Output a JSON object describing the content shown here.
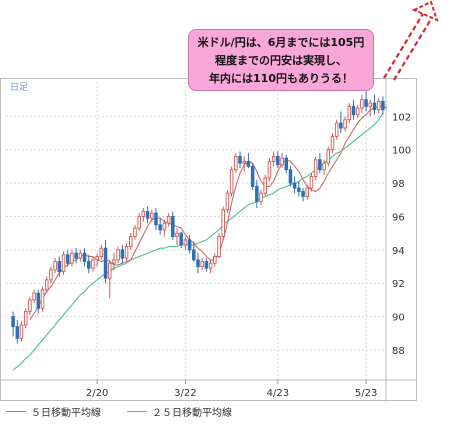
{
  "chart_data": {
    "type": "candlestick",
    "period_label": "日足",
    "y_ticks": [
      88,
      90,
      92,
      94,
      96,
      98,
      100,
      102
    ],
    "ylim": [
      86.2,
      104.3
    ],
    "x_tick_labels": [
      "2/20",
      "3/22",
      "4/23",
      "5/23"
    ],
    "x_tick_index": [
      20,
      41,
      63,
      84
    ],
    "candles": [
      [
        90.0,
        90.3,
        88.8,
        89.4
      ],
      [
        89.4,
        89.8,
        88.4,
        88.7
      ],
      [
        88.7,
        89.7,
        88.5,
        89.5
      ],
      [
        89.5,
        90.5,
        89.3,
        90.3
      ],
      [
        90.3,
        91.2,
        90.1,
        91.0
      ],
      [
        91.0,
        91.6,
        90.8,
        91.4
      ],
      [
        91.4,
        91.6,
        90.2,
        90.5
      ],
      [
        90.5,
        91.8,
        90.3,
        91.6
      ],
      [
        91.6,
        92.4,
        91.4,
        92.2
      ],
      [
        92.2,
        93.0,
        92.0,
        92.8
      ],
      [
        92.8,
        93.5,
        92.6,
        93.3
      ],
      [
        93.3,
        93.6,
        92.4,
        92.7
      ],
      [
        92.7,
        93.9,
        92.5,
        93.7
      ],
      [
        93.7,
        94.0,
        93.0,
        93.2
      ],
      [
        93.2,
        94.0,
        93.0,
        93.8
      ],
      [
        93.8,
        94.1,
        93.2,
        93.5
      ],
      [
        93.5,
        94.0,
        93.3,
        93.8
      ],
      [
        93.8,
        94.1,
        93.0,
        93.3
      ],
      [
        93.3,
        93.7,
        92.6,
        92.9
      ],
      [
        92.9,
        93.6,
        92.7,
        93.4
      ],
      [
        93.4,
        93.8,
        93.0,
        93.6
      ],
      [
        93.6,
        94.3,
        93.4,
        94.1
      ],
      [
        94.1,
        94.6,
        92.0,
        92.3
      ],
      [
        92.3,
        93.4,
        91.1,
        93.2
      ],
      [
        93.2,
        93.8,
        92.8,
        93.4
      ],
      [
        93.4,
        94.2,
        93.2,
        94.0
      ],
      [
        94.0,
        94.3,
        93.2,
        93.5
      ],
      [
        93.5,
        94.4,
        93.3,
        94.2
      ],
      [
        94.2,
        95.0,
        94.0,
        94.8
      ],
      [
        94.8,
        95.5,
        94.6,
        95.3
      ],
      [
        95.3,
        96.2,
        95.1,
        96.0
      ],
      [
        96.0,
        96.5,
        95.7,
        96.3
      ],
      [
        96.3,
        96.6,
        95.6,
        95.9
      ],
      [
        95.9,
        96.4,
        95.7,
        96.2
      ],
      [
        96.2,
        96.5,
        95.2,
        95.5
      ],
      [
        95.5,
        95.9,
        94.9,
        95.2
      ],
      [
        95.2,
        95.8,
        94.8,
        95.6
      ],
      [
        95.6,
        96.2,
        95.4,
        96.0
      ],
      [
        96.0,
        96.3,
        94.6,
        94.8
      ],
      [
        94.8,
        95.3,
        94.3,
        95.0
      ],
      [
        95.0,
        95.1,
        94.1,
        94.3
      ],
      [
        94.3,
        94.8,
        94.0,
        94.6
      ],
      [
        94.6,
        94.9,
        93.8,
        94.0
      ],
      [
        94.0,
        94.5,
        93.3,
        93.4
      ],
      [
        93.4,
        93.8,
        92.6,
        93.0
      ],
      [
        93.0,
        93.5,
        92.8,
        93.3
      ],
      [
        93.3,
        93.5,
        92.7,
        92.9
      ],
      [
        92.9,
        93.4,
        92.6,
        93.2
      ],
      [
        93.2,
        93.8,
        93.0,
        93.6
      ],
      [
        93.6,
        95.0,
        93.5,
        94.8
      ],
      [
        94.8,
        96.6,
        94.6,
        96.4
      ],
      [
        96.4,
        97.6,
        96.2,
        97.4
      ],
      [
        97.4,
        99.0,
        97.2,
        98.8
      ],
      [
        98.8,
        99.8,
        98.6,
        99.6
      ],
      [
        99.6,
        99.9,
        98.9,
        99.2
      ],
      [
        99.2,
        99.6,
        98.7,
        99.3
      ],
      [
        99.3,
        99.8,
        98.9,
        99.0
      ],
      [
        99.0,
        99.2,
        97.6,
        97.8
      ],
      [
        97.8,
        98.2,
        96.5,
        96.9
      ],
      [
        96.9,
        97.6,
        96.7,
        97.4
      ],
      [
        97.4,
        98.5,
        97.2,
        98.3
      ],
      [
        98.3,
        99.5,
        98.1,
        99.3
      ],
      [
        99.3,
        99.9,
        99.0,
        99.6
      ],
      [
        99.6,
        99.9,
        98.9,
        99.1
      ],
      [
        99.1,
        99.8,
        98.9,
        99.5
      ],
      [
        99.5,
        99.7,
        98.6,
        98.8
      ],
      [
        98.8,
        99.0,
        97.8,
        98.0
      ],
      [
        98.0,
        98.4,
        97.4,
        97.7
      ],
      [
        97.7,
        98.1,
        97.2,
        97.5
      ],
      [
        97.5,
        97.7,
        96.9,
        97.2
      ],
      [
        97.2,
        97.9,
        97.0,
        97.7
      ],
      [
        97.7,
        98.6,
        97.5,
        98.4
      ],
      [
        98.4,
        99.6,
        98.2,
        99.4
      ],
      [
        99.4,
        99.8,
        98.6,
        98.8
      ],
      [
        98.8,
        99.4,
        98.5,
        99.2
      ],
      [
        99.2,
        100.2,
        99.0,
        100.0
      ],
      [
        100.0,
        101.0,
        99.8,
        100.8
      ],
      [
        100.8,
        101.8,
        100.6,
        101.6
      ],
      [
        101.6,
        102.3,
        101.0,
        101.3
      ],
      [
        101.3,
        102.0,
        101.1,
        101.8
      ],
      [
        101.8,
        102.8,
        101.6,
        102.6
      ],
      [
        102.6,
        103.0,
        101.8,
        102.1
      ],
      [
        102.1,
        102.7,
        101.9,
        102.5
      ],
      [
        102.5,
        103.3,
        102.2,
        103.0
      ],
      [
        103.0,
        103.5,
        102.3,
        102.6
      ],
      [
        102.6,
        103.0,
        102.0,
        102.8
      ],
      [
        102.8,
        103.3,
        102.1,
        102.4
      ],
      [
        102.4,
        103.1,
        102.2,
        102.9
      ],
      [
        102.9,
        103.2,
        102.1,
        102.4
      ]
    ],
    "series": [
      {
        "name": "５日移動平均線",
        "color": "#c9706e",
        "start": 4,
        "values": [
          89.8,
          90.2,
          90.6,
          91.1,
          91.5,
          91.8,
          92.2,
          92.6,
          92.9,
          93.1,
          93.3,
          93.4,
          93.6,
          93.7,
          93.6,
          93.6,
          93.4,
          93.3,
          93.4,
          93.3,
          93.1,
          93.1,
          93.2,
          93.3,
          93.4,
          93.9,
          94.4,
          94.9,
          95.4,
          95.8,
          95.9,
          95.9,
          95.7,
          95.6,
          95.5,
          95.4,
          95.3,
          94.9,
          94.6,
          94.4,
          94.1,
          93.9,
          93.6,
          93.4,
          93.4,
          93.8,
          94.6,
          95.6,
          96.8,
          97.8,
          98.6,
          99.1,
          99.3,
          99.2,
          98.7,
          98.1,
          97.8,
          97.8,
          98.1,
          98.7,
          99.2,
          99.4,
          99.3,
          99.0,
          98.7,
          98.2,
          97.8,
          97.6,
          97.5,
          97.7,
          98.1,
          98.6,
          99.0,
          99.4,
          99.8,
          100.4,
          100.8,
          101.2,
          101.6,
          101.9,
          102.1,
          102.4,
          102.5,
          102.6,
          102.6,
          102.5
        ]
      },
      {
        "name": "２５日移動平均線",
        "color": "#4cbf8e",
        "start": 0,
        "values": [
          86.8,
          87.0,
          87.2,
          87.5,
          87.7,
          88.0,
          88.3,
          88.6,
          88.9,
          89.2,
          89.5,
          89.8,
          90.1,
          90.4,
          90.7,
          91.0,
          91.3,
          91.5,
          91.8,
          92.0,
          92.2,
          92.4,
          92.6,
          92.7,
          92.9,
          93.0,
          93.1,
          93.2,
          93.4,
          93.5,
          93.6,
          93.7,
          93.8,
          93.9,
          94.0,
          94.1,
          94.1,
          94.2,
          94.2,
          94.2,
          94.3,
          94.3,
          94.3,
          94.3,
          94.4,
          94.5,
          94.6,
          94.8,
          95.0,
          95.2,
          95.5,
          95.7,
          95.9,
          96.1,
          96.3,
          96.5,
          96.7,
          96.8,
          96.9,
          97.1,
          97.2,
          97.3,
          97.4,
          97.6,
          97.7,
          97.8,
          97.9,
          98.0,
          98.1,
          98.3,
          98.4,
          98.6,
          98.8,
          99.0,
          99.2,
          99.4,
          99.6,
          99.8,
          99.9,
          100.1,
          100.3,
          100.5,
          100.7,
          100.9,
          101.1,
          101.3,
          101.5,
          101.8,
          102.2
        ]
      }
    ]
  },
  "annotation": {
    "line1": "米ドル/円は、6月までには105円",
    "line2": "程度までの円安は実現し、",
    "line3": "年内には110円もありうる！"
  },
  "legend": {
    "ma5": "５日移動平均線",
    "ma25": "２５日移動平均線"
  }
}
